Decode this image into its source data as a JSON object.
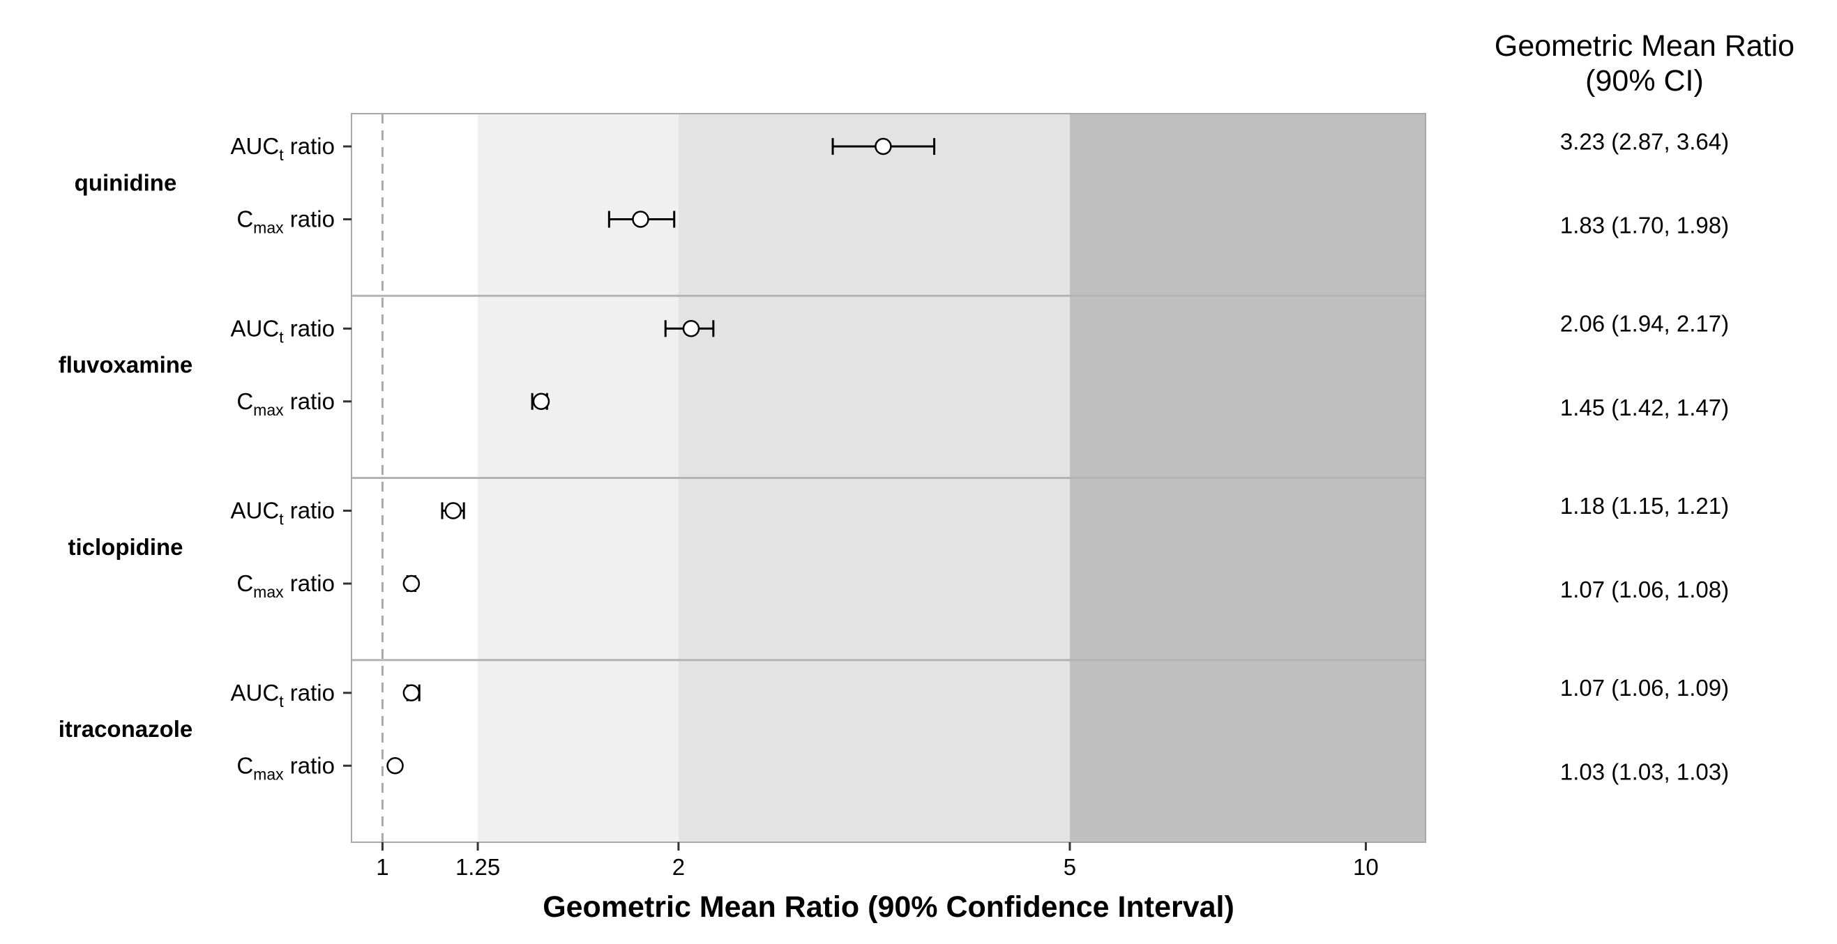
{
  "chart_data": {
    "type": "scatter",
    "x_scale": "log",
    "xlabel": "Geometric Mean Ratio (90% Confidence Interval)",
    "x_ticks": [
      1,
      1.25,
      2,
      5,
      10
    ],
    "x_tick_labels": [
      "1",
      "1.25",
      "2",
      "5",
      "10"
    ],
    "xlim": [
      0.93,
      11.5
    ],
    "reference_line": 1,
    "bands": [
      {
        "from": 0.93,
        "to": 1.25,
        "color": "#ffffff"
      },
      {
        "from": 1.25,
        "to": 2,
        "color": "#f0f0f0"
      },
      {
        "from": 2,
        "to": 5,
        "color": "#e3e3e3"
      },
      {
        "from": 5,
        "to": 11.5,
        "color": "#bfbfbf"
      }
    ],
    "ci_column_title": [
      "Geometric Mean Ratio",
      "(90% CI)"
    ],
    "groups": [
      {
        "drug": "quinidine",
        "rows": [
          {
            "metric": "AUC",
            "sub": "t",
            "suffix": " ratio",
            "estimate": 3.23,
            "lower": 2.87,
            "upper": 3.64,
            "label": "3.23 (2.87, 3.64)"
          },
          {
            "metric": "C",
            "sub": "max",
            "suffix": " ratio",
            "estimate": 1.83,
            "lower": 1.7,
            "upper": 1.98,
            "label": "1.83 (1.70, 1.98)"
          }
        ]
      },
      {
        "drug": "fluvoxamine",
        "rows": [
          {
            "metric": "AUC",
            "sub": "t",
            "suffix": " ratio",
            "estimate": 2.06,
            "lower": 1.94,
            "upper": 2.17,
            "label": "2.06 (1.94, 2.17)"
          },
          {
            "metric": "C",
            "sub": "max",
            "suffix": " ratio",
            "estimate": 1.45,
            "lower": 1.42,
            "upper": 1.47,
            "label": "1.45 (1.42, 1.47)"
          }
        ]
      },
      {
        "drug": "ticlopidine",
        "rows": [
          {
            "metric": "AUC",
            "sub": "t",
            "suffix": " ratio",
            "estimate": 1.18,
            "lower": 1.15,
            "upper": 1.21,
            "label": "1.18 (1.15, 1.21)"
          },
          {
            "metric": "C",
            "sub": "max",
            "suffix": " ratio",
            "estimate": 1.07,
            "lower": 1.06,
            "upper": 1.08,
            "label": "1.07 (1.06, 1.08)"
          }
        ]
      },
      {
        "drug": "itraconazole",
        "rows": [
          {
            "metric": "AUC",
            "sub": "t",
            "suffix": " ratio",
            "estimate": 1.07,
            "lower": 1.06,
            "upper": 1.09,
            "label": "1.07 (1.06, 1.09)"
          },
          {
            "metric": "C",
            "sub": "max",
            "suffix": " ratio",
            "estimate": 1.03,
            "lower": 1.03,
            "upper": 1.03,
            "label": "1.03 (1.03, 1.03)"
          }
        ]
      }
    ]
  }
}
